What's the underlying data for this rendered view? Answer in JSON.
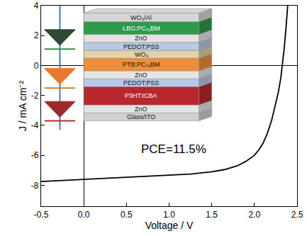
{
  "chart_data": {
    "type": "line",
    "x_label": "Voltage / V",
    "y_label": "J / mA cm⁻²",
    "x": [
      -0.5,
      -0.25,
      0,
      0.25,
      0.5,
      0.75,
      1.0,
      1.25,
      1.5,
      1.65,
      1.8,
      1.9,
      2.0,
      2.05,
      2.1,
      2.15,
      2.2,
      2.25,
      2.28,
      2.31,
      2.33,
      2.35,
      2.37,
      2.39
    ],
    "values": [
      -7.75,
      -7.68,
      -7.6,
      -7.55,
      -7.48,
      -7.42,
      -7.35,
      -7.25,
      -7.1,
      -6.95,
      -6.7,
      -6.4,
      -6.0,
      -5.65,
      -5.2,
      -4.55,
      -3.7,
      -2.6,
      -1.8,
      -0.8,
      0.1,
      1.2,
      2.5,
      4.0
    ],
    "color": "#000000",
    "xlim": [
      -0.5,
      2.5
    ],
    "ylim": [
      -9.4,
      4
    ],
    "xticks": [
      -0.5,
      {
        "value": 0,
        "label": "0.0"
      },
      0.5,
      {
        "value": 1,
        "label": "1.0"
      },
      1.5,
      {
        "value": 2,
        "label": "2.0"
      },
      2.5
    ],
    "yticks": [
      -8,
      -6,
      -4,
      -2,
      0,
      2,
      4
    ],
    "grid": false,
    "annotations": [
      {
        "text": "PCE=11.5%",
        "x": 1.05,
        "y": -5.6
      }
    ],
    "inset": {
      "layers": [
        "WO₃/Al",
        "LBG:PC₇₁BM",
        "ZnO",
        "PEDOT:PSS",
        "WO₃",
        "PTB:PC₇₁BM",
        "ZnO",
        "PEDOT:PSS",
        "P3HT:ICBA",
        "ZnO",
        "Glass/ITO"
      ]
    }
  }
}
